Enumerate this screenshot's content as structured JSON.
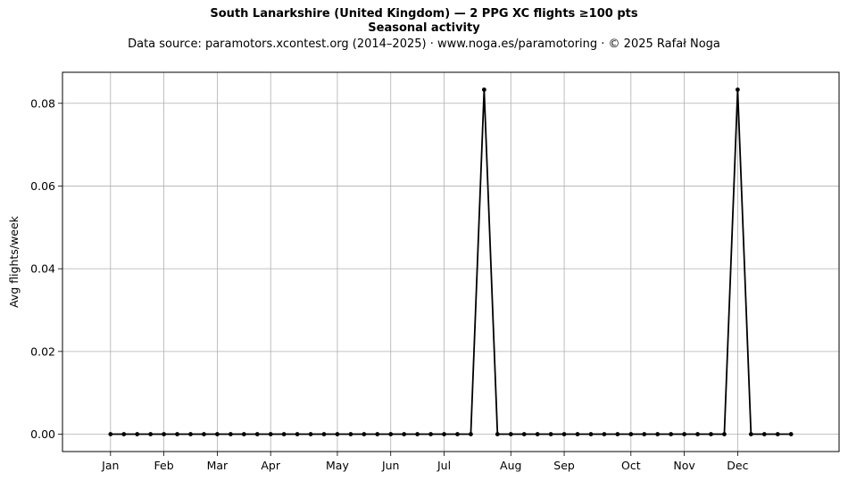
{
  "header": {
    "title_line1": "South Lanarkshire (United Kingdom)  —  2 PPG XC flights ≥100 pts",
    "title_line2": "Seasonal activity",
    "subtitle": "Data source: paramotors.xcontest.org (2014–2025)  ·  www.noga.es/paramotoring  ·  © 2025 Rafał Noga"
  },
  "chart_data": {
    "type": "line",
    "title": "South Lanarkshire (United Kingdom)  —  2 PPG XC flights ≥100 pts",
    "subtitle": "Seasonal activity",
    "xlabel": "",
    "ylabel": "Avg flights/week",
    "x_unit": "week of year",
    "xlim": [
      -2.6,
      55.6
    ],
    "ylim": [
      -0.0042,
      0.0875
    ],
    "grid": true,
    "line_color": "#000000",
    "month_ticks": [
      {
        "label": "Jan",
        "week": 1
      },
      {
        "label": "Feb",
        "week": 5
      },
      {
        "label": "Mar",
        "week": 9
      },
      {
        "label": "Apr",
        "week": 13
      },
      {
        "label": "May",
        "week": 18
      },
      {
        "label": "Jun",
        "week": 22
      },
      {
        "label": "Jul",
        "week": 26
      },
      {
        "label": "Aug",
        "week": 31
      },
      {
        "label": "Sep",
        "week": 35
      },
      {
        "label": "Oct",
        "week": 40
      },
      {
        "label": "Nov",
        "week": 44
      },
      {
        "label": "Dec",
        "week": 48
      }
    ],
    "y_ticks": [
      0.0,
      0.02,
      0.04,
      0.06,
      0.08
    ],
    "y_tick_labels": [
      "0.00",
      "0.02",
      "0.04",
      "0.06",
      "0.08"
    ],
    "x": [
      1,
      2,
      3,
      4,
      5,
      6,
      7,
      8,
      9,
      10,
      11,
      12,
      13,
      14,
      15,
      16,
      17,
      18,
      19,
      20,
      21,
      22,
      23,
      24,
      25,
      26,
      27,
      28,
      29,
      30,
      31,
      32,
      33,
      34,
      35,
      36,
      37,
      38,
      39,
      40,
      41,
      42,
      43,
      44,
      45,
      46,
      47,
      48,
      49,
      50,
      51,
      52
    ],
    "values": [
      0,
      0,
      0,
      0,
      0,
      0,
      0,
      0,
      0,
      0,
      0,
      0,
      0,
      0,
      0,
      0,
      0,
      0,
      0,
      0,
      0,
      0,
      0,
      0,
      0,
      0,
      0,
      0,
      0.0833,
      0,
      0,
      0,
      0,
      0,
      0,
      0,
      0,
      0,
      0,
      0,
      0,
      0,
      0,
      0,
      0,
      0,
      0,
      0.0833,
      0,
      0,
      0,
      0
    ]
  }
}
